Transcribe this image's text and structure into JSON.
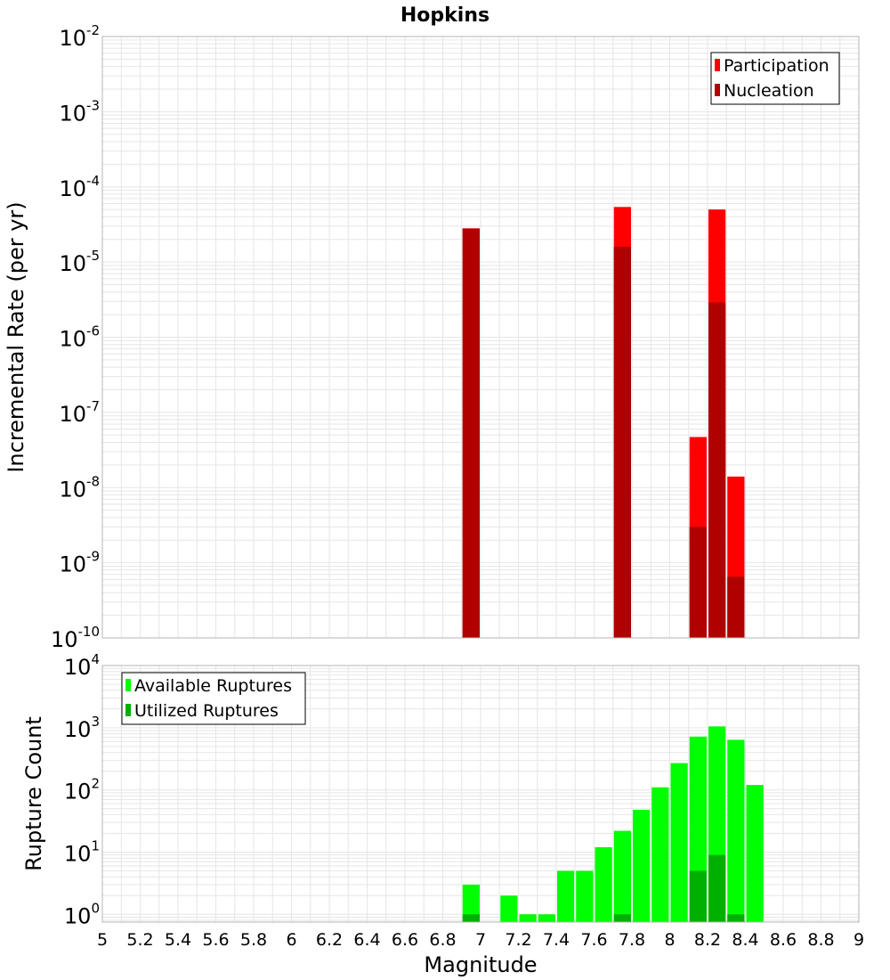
{
  "title": "Hopkins",
  "xlabel": "Magnitude",
  "x_ticks": [
    "5",
    "5.2",
    "5.4",
    "5.6",
    "5.8",
    "6",
    "6.2",
    "6.4",
    "6.6",
    "6.8",
    "7",
    "7.2",
    "7.4",
    "7.6",
    "7.8",
    "8",
    "8.2",
    "8.4",
    "8.6",
    "8.8",
    "9"
  ],
  "colors": {
    "participation": "#ff0000",
    "nucleation": "#b00000",
    "available": "#00ff00",
    "utilized": "#00b000",
    "grid": "#e6e6e6",
    "frame": "#b4b4b4"
  },
  "chart_data": [
    {
      "type": "bar",
      "title": "Hopkins",
      "xlabel": "Magnitude",
      "ylabel": "Incremental Rate (per yr)",
      "xlim": [
        5,
        9
      ],
      "ylim": [
        1e-10,
        0.01
      ],
      "yscale": "log",
      "y_tick_exponents": [
        "-10",
        "-9",
        "-8",
        "-7",
        "-6",
        "-5",
        "-4",
        "-3",
        "-2"
      ],
      "bar_width": 0.1,
      "grid": true,
      "legend": "top-right",
      "series": [
        {
          "name": "Participation",
          "x": [
            6.95,
            7.75,
            8.15,
            8.25,
            8.35
          ],
          "values": [
            2.8e-05,
            5.4e-05,
            4.7e-08,
            5e-05,
            1.4e-08
          ]
        },
        {
          "name": "Nucleation",
          "x": [
            6.95,
            7.75,
            8.15,
            8.25,
            8.35
          ],
          "values": [
            2.8e-05,
            1.6e-05,
            3e-09,
            2.9e-06,
            6.5e-10
          ]
        }
      ]
    },
    {
      "type": "bar",
      "xlabel": "Magnitude",
      "ylabel": "Rupture Count",
      "xlim": [
        5,
        9
      ],
      "ylim": [
        0.75,
        10000
      ],
      "yscale": "log",
      "y_tick_exponents": [
        "0",
        "1",
        "2",
        "3",
        "4"
      ],
      "bar_width": 0.1,
      "grid": true,
      "legend": "top-left",
      "series": [
        {
          "name": "Available Ruptures",
          "x": [
            6.95,
            7.15,
            7.25,
            7.35,
            7.45,
            7.55,
            7.65,
            7.75,
            7.85,
            7.95,
            8.05,
            8.15,
            8.25,
            8.35,
            8.45
          ],
          "values": [
            3,
            2,
            1,
            1,
            5,
            5,
            12,
            22,
            48,
            110,
            270,
            720,
            1050,
            640,
            120
          ]
        },
        {
          "name": "Utilized Ruptures",
          "x": [
            6.95,
            7.75,
            8.15,
            8.25,
            8.35
          ],
          "values": [
            1,
            1,
            5,
            9,
            1
          ]
        }
      ]
    }
  ]
}
